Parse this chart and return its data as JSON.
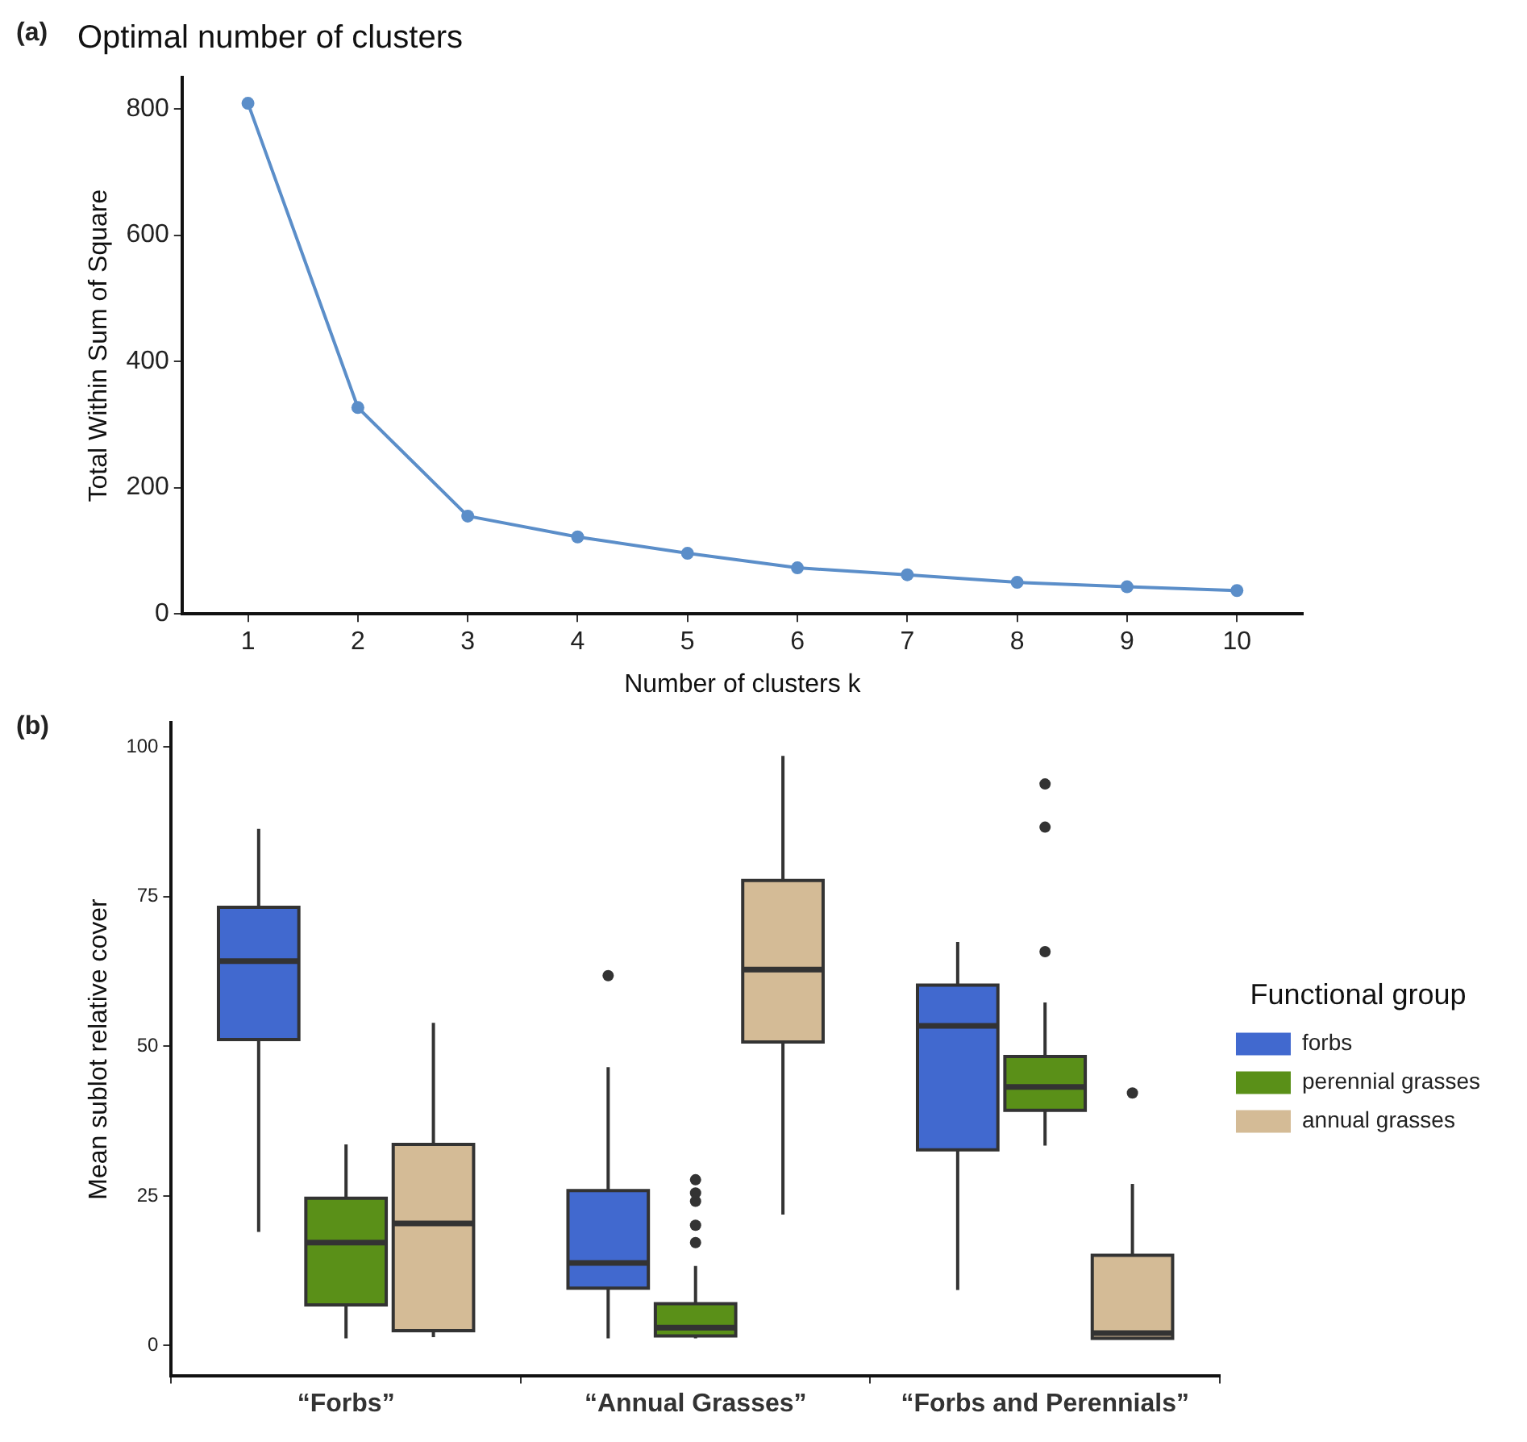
{
  "chart_data": [
    {
      "type": "line",
      "title": "Optimal number of clusters",
      "xlabel": "Number of clusters k",
      "ylabel": "Total Within Sum of Square",
      "annotations": [
        "(a)"
      ],
      "x": [
        1,
        2,
        3,
        4,
        5,
        6,
        7,
        8,
        9,
        10
      ],
      "values": [
        809,
        327,
        155,
        122,
        96,
        73,
        62,
        50,
        43,
        37
      ],
      "color": "#5b8ec9",
      "marker": "circle",
      "line_style": "solid",
      "grid": false,
      "xlim": [
        0.4,
        10.6
      ],
      "xticks": [
        1,
        2,
        3,
        4,
        5,
        6,
        7,
        8,
        9,
        10
      ],
      "ylim": [
        0,
        850
      ],
      "yticks": [
        0,
        200,
        400,
        600,
        800
      ]
    },
    {
      "type": "box",
      "ylabel": "Mean sublot relative cover",
      "annotations": [
        "(b)"
      ],
      "legend_title": "Functional group",
      "legend": "right",
      "grid": false,
      "categories": [
        "“Forbs”",
        "“Annual Grasses”",
        "“Forbs and Perennials”"
      ],
      "ylim": [
        -5,
        104
      ],
      "yticks": [
        0,
        25,
        50,
        75,
        100
      ],
      "series": [
        {
          "name": "forbs",
          "color": "#4169cf",
          "boxes": [
            {
              "low": 19,
              "q1": 51.1,
              "median": 64.2,
              "q3": 73.2,
              "high": 86.3
            },
            {
              "low": 1.2,
              "q1": 9.6,
              "median": 13.8,
              "q3": 25.9,
              "high": 46.5,
              "outliers": [
                61.8
              ]
            },
            {
              "low": 9.3,
              "q1": 32.7,
              "median": 53.4,
              "q3": 60.2,
              "high": 67.4
            }
          ]
        },
        {
          "name": "perennial grasses",
          "color": "#5a9018",
          "boxes": [
            {
              "low": 1.2,
              "q1": 6.8,
              "median": 17.2,
              "q3": 24.6,
              "high": 33.6
            },
            {
              "low": 1.2,
              "q1": 1.6,
              "median": 3,
              "q3": 7,
              "high": 13.3,
              "outliers": [
                17.2,
                20.1,
                24.1,
                25.5,
                27.7
              ]
            },
            {
              "low": 33.4,
              "q1": 39.3,
              "median": 43.2,
              "q3": 48.3,
              "high": 57.3,
              "outliers": [
                65.8,
                86.6,
                93.8
              ]
            }
          ]
        },
        {
          "name": "annual grasses",
          "color": "#d4bb96",
          "boxes": [
            {
              "low": 1.4,
              "q1": 2.5,
              "median": 20.4,
              "q3": 33.6,
              "high": 53.9
            },
            {
              "low": 21.9,
              "q1": 50.7,
              "median": 62.8,
              "q3": 77.7,
              "high": 98.5
            },
            {
              "low": 1.2,
              "q1": 1.2,
              "median": 2.1,
              "q3": 15.1,
              "high": 27,
              "outliers": [
                42.2
              ]
            }
          ]
        }
      ]
    }
  ]
}
